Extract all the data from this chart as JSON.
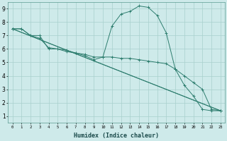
{
  "title": "",
  "xlabel": "Humidex (Indice chaleur)",
  "bg_color": "#ceeaea",
  "line_color": "#2d7d6e",
  "grid_color": "#a8d0cc",
  "xlim": [
    -0.5,
    23.5
  ],
  "ylim": [
    0.5,
    9.5
  ],
  "xtick_labels": [
    "0",
    "1",
    "2",
    "3",
    "4",
    "5",
    "6",
    "7",
    "8",
    "9",
    "10",
    "11",
    "12",
    "13",
    "14",
    "15",
    "16",
    "17",
    "18",
    "19",
    "20",
    "21",
    "22",
    "23"
  ],
  "xtick_vals": [
    0,
    1,
    2,
    3,
    4,
    5,
    6,
    7,
    8,
    9,
    10,
    11,
    12,
    13,
    14,
    15,
    16,
    17,
    18,
    19,
    20,
    21,
    22,
    23
  ],
  "ytick_vals": [
    1,
    2,
    3,
    4,
    5,
    6,
    7,
    8,
    9
  ],
  "series": [
    {
      "x": [
        0,
        1,
        2,
        3,
        4,
        5,
        6,
        7,
        8,
        9,
        10,
        11,
        12,
        13,
        14,
        15,
        16,
        17,
        18,
        19,
        20,
        21,
        22,
        23
      ],
      "y": [
        7.5,
        7.5,
        7.0,
        7.0,
        6.0,
        6.0,
        5.8,
        5.7,
        5.5,
        5.2,
        5.4,
        7.7,
        8.6,
        8.8,
        9.2,
        9.1,
        8.5,
        7.2,
        4.5,
        3.3,
        2.5,
        1.5,
        1.4,
        1.4
      ]
    },
    {
      "x": [
        0,
        1,
        2,
        3,
        4,
        5,
        6,
        7,
        8,
        9,
        10,
        11,
        12,
        13,
        14,
        15,
        16,
        17,
        18,
        19,
        20,
        21,
        22,
        23
      ],
      "y": [
        7.5,
        7.5,
        7.0,
        6.8,
        6.1,
        6.0,
        5.9,
        5.7,
        5.6,
        5.4,
        5.4,
        5.4,
        5.3,
        5.3,
        5.2,
        5.1,
        5.0,
        4.9,
        4.5,
        4.0,
        3.5,
        3.0,
        1.5,
        1.4
      ]
    },
    {
      "x": [
        0,
        23
      ],
      "y": [
        7.5,
        1.4
      ]
    },
    {
      "x": [
        0,
        23
      ],
      "y": [
        7.5,
        1.4
      ]
    }
  ]
}
